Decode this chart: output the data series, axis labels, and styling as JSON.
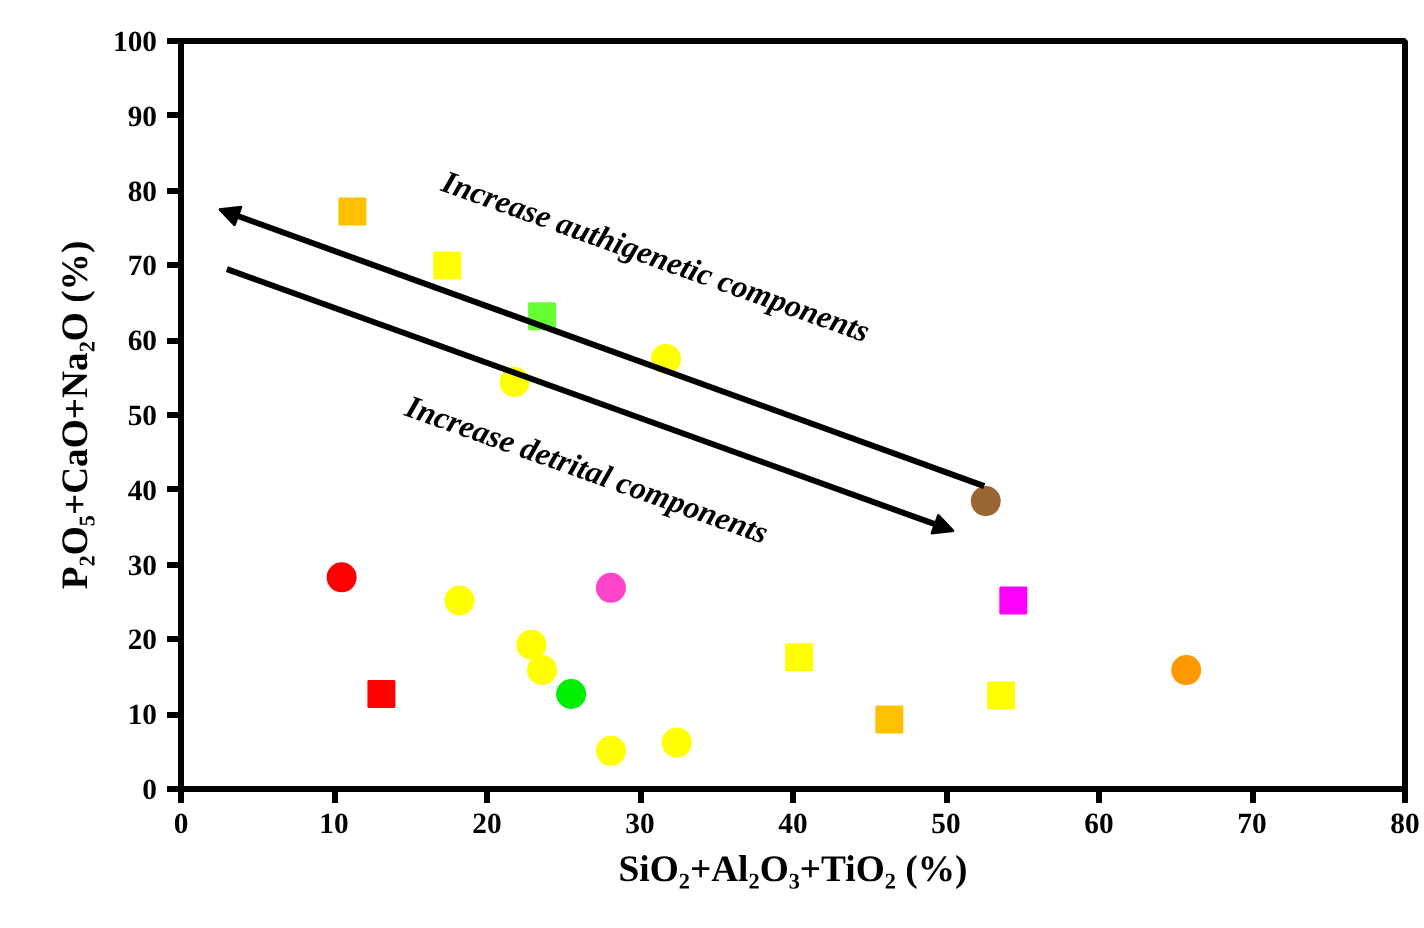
{
  "chart_data": {
    "type": "scatter",
    "xlabel": "SiO₂+Al₂O₃+TiO₂ (%)",
    "ylabel": "P₂O₅+CaO+Na₂O (%)",
    "xlim": [
      0,
      80
    ],
    "xticks": [
      0,
      10,
      20,
      30,
      40,
      50,
      60,
      70,
      80
    ],
    "ylim": [
      0,
      100
    ],
    "yticks": [
      0,
      10,
      20,
      30,
      40,
      50,
      60,
      70,
      80,
      90,
      100
    ],
    "grid": false,
    "series": [
      {
        "marker": "square",
        "x": [
          11.2,
          17.4,
          23.6,
          13.1,
          40.4,
          46.3,
          53.6,
          54.4
        ],
        "values": [
          77.2,
          70,
          63.2,
          12.7,
          17.6,
          9.3,
          12.5,
          25.2
        ],
        "colors": [
          "#ffc000",
          "#ffff00",
          "#66ff33",
          "#ff0000",
          "#ffff00",
          "#ffc000",
          "#ffff00",
          "#ff00ff"
        ]
      },
      {
        "marker": "circle",
        "x": [
          31.7,
          21.8,
          52.6,
          10.5,
          18.2,
          28.1,
          22.9,
          23.6,
          25.5,
          28.1,
          32.4,
          65.7
        ],
        "values": [
          57.5,
          54.4,
          38.5,
          28.3,
          25.2,
          26.9,
          19.3,
          15.9,
          12.7,
          5.1,
          6.2,
          15.9
        ],
        "colors": [
          "#ffff00",
          "#ffff00",
          "#996633",
          "#ff0000",
          "#ffff00",
          "#ff44cc",
          "#ffff00",
          "#ffff00",
          "#00ee00",
          "#ffff00",
          "#ffff00",
          "#ff9900"
        ]
      }
    ],
    "annotations": [
      "Increase authigenetic components",
      "Increase detrital components"
    ]
  }
}
